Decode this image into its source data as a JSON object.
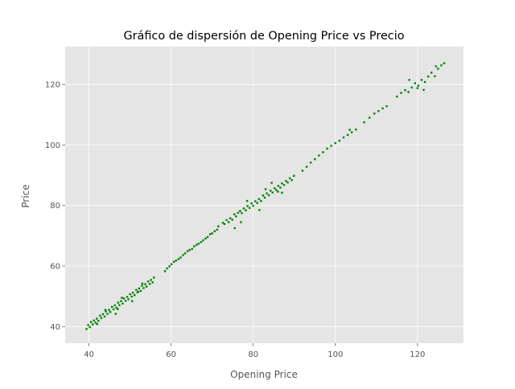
{
  "chart_data": {
    "type": "scatter",
    "title": "Gráfico de dispersión de Opening Price vs Precio",
    "xlabel": "Opening Price",
    "ylabel": "Price",
    "xlim": [
      34.2,
      131.2
    ],
    "ylim": [
      34.5,
      132.5
    ],
    "xticks": [
      40,
      60,
      80,
      100,
      120
    ],
    "yticks": [
      40,
      60,
      80,
      100,
      120
    ],
    "grid": true,
    "style": "ggplot",
    "colors": {
      "points": "#008000",
      "plot_bg": "#e5e5e5",
      "grid": "#ffffff",
      "text": "#555555",
      "title": "#000000"
    },
    "series": [
      {
        "x": [
          39.4,
          39.8,
          40.2,
          40.5,
          40.9,
          41.2,
          41.6,
          41.9,
          42.3,
          42.7,
          43.0,
          43.4,
          43.8,
          44.1,
          44.5,
          44.9,
          45.2,
          45.6,
          46.0,
          46.3,
          46.7,
          47.1,
          47.4,
          47.8,
          48.2,
          48.5,
          48.9,
          49.3,
          49.6,
          50.0,
          50.4,
          50.7,
          51.1,
          51.5,
          51.8,
          52.2,
          52.6,
          52.9,
          53.3,
          53.7,
          54.0,
          54.4,
          54.8,
          55.1,
          55.5,
          55.8,
          58.5,
          59.0,
          59.6,
          60.1,
          60.7,
          61.2,
          61.8,
          62.3,
          62.9,
          63.4,
          64.0,
          64.5,
          65.1,
          65.6,
          66.2,
          66.7,
          67.3,
          67.8,
          68.4,
          68.9,
          69.5,
          70.0,
          70.6,
          71.2,
          71.5,
          72.6,
          73.0,
          73.5,
          74.0,
          74.4,
          74.9,
          75.4,
          75.8,
          76.3,
          76.8,
          77.2,
          77.7,
          78.2,
          78.6,
          79.1,
          79.6,
          80.0,
          80.5,
          81.0,
          81.4,
          81.9,
          82.4,
          82.8,
          83.3,
          83.8,
          84.2,
          84.7,
          85.2,
          85.6,
          86.1,
          86.6,
          87.0,
          87.5,
          88.0,
          88.4,
          88.9,
          89.4,
          89.9,
          92.0,
          93.0,
          94.0,
          95.0,
          96.0,
          97.0,
          98.0,
          99.0,
          100.0,
          101.0,
          102.0,
          103.0,
          104.0,
          105.0,
          107.0,
          108.3,
          109.5,
          110.5,
          111.5,
          112.5,
          115.0,
          116.0,
          117.0,
          117.8,
          118.6,
          119.4,
          120.2,
          121.0,
          121.8,
          122.6,
          123.4,
          124.2,
          125.0,
          125.8,
          126.5,
          44.0,
          46.5,
          48.0,
          50.5,
          53.0,
          75.5,
          78.5,
          81.5,
          84.5,
          87.0,
          118.0,
          121.5,
          124.5,
          42.0,
          47.0,
          52.0,
          77.0,
          83.0,
          86.0,
          103.5,
          120.0
        ],
        "y": [
          39.2,
          40.5,
          39.8,
          41.5,
          40.7,
          42.0,
          41.3,
          42.6,
          41.9,
          43.6,
          42.8,
          44.1,
          43.3,
          45.0,
          44.2,
          45.5,
          44.8,
          46.5,
          45.7,
          47.0,
          46.2,
          47.9,
          47.1,
          48.4,
          47.6,
          49.3,
          48.5,
          49.8,
          49.0,
          50.7,
          49.9,
          51.2,
          50.4,
          52.1,
          51.3,
          52.6,
          51.8,
          53.5,
          52.7,
          54.0,
          53.2,
          54.9,
          54.1,
          55.4,
          54.6,
          56.2,
          58.3,
          59.2,
          59.9,
          60.6,
          61.4,
          61.8,
          62.3,
          62.8,
          63.6,
          64.2,
          64.9,
          65.3,
          65.6,
          66.5,
          67.0,
          67.4,
          67.9,
          68.5,
          69.1,
          69.6,
          70.5,
          70.8,
          71.5,
          72.0,
          73.1,
          74.3,
          73.9,
          75.2,
          74.5,
          75.8,
          75.3,
          77.1,
          76.4,
          77.6,
          78.2,
          77.5,
          79.0,
          78.4,
          79.8,
          79.2,
          80.7,
          79.9,
          81.4,
          80.8,
          82.1,
          81.5,
          83.3,
          82.6,
          84.0,
          83.4,
          84.9,
          84.3,
          85.7,
          85.1,
          86.5,
          85.9,
          87.3,
          86.8,
          88.1,
          87.6,
          89.0,
          88.4,
          89.8,
          91.5,
          92.8,
          94.2,
          95.3,
          96.5,
          97.6,
          98.8,
          99.7,
          100.6,
          101.4,
          102.5,
          103.3,
          104.2,
          105.1,
          107.5,
          109.0,
          110.4,
          111.2,
          112.1,
          112.8,
          116.0,
          117.2,
          118.1,
          117.5,
          119.0,
          120.4,
          119.6,
          121.5,
          120.8,
          122.6,
          123.9,
          122.7,
          125.2,
          126.3,
          127.0,
          45.5,
          44.2,
          49.5,
          48.4,
          54.2,
          72.5,
          81.5,
          78.5,
          87.5,
          84.2,
          121.5,
          118.2,
          126.0,
          40.8,
          45.8,
          51.5,
          74.5,
          85.4,
          84.6,
          105.0,
          118.8
        ]
      }
    ]
  }
}
